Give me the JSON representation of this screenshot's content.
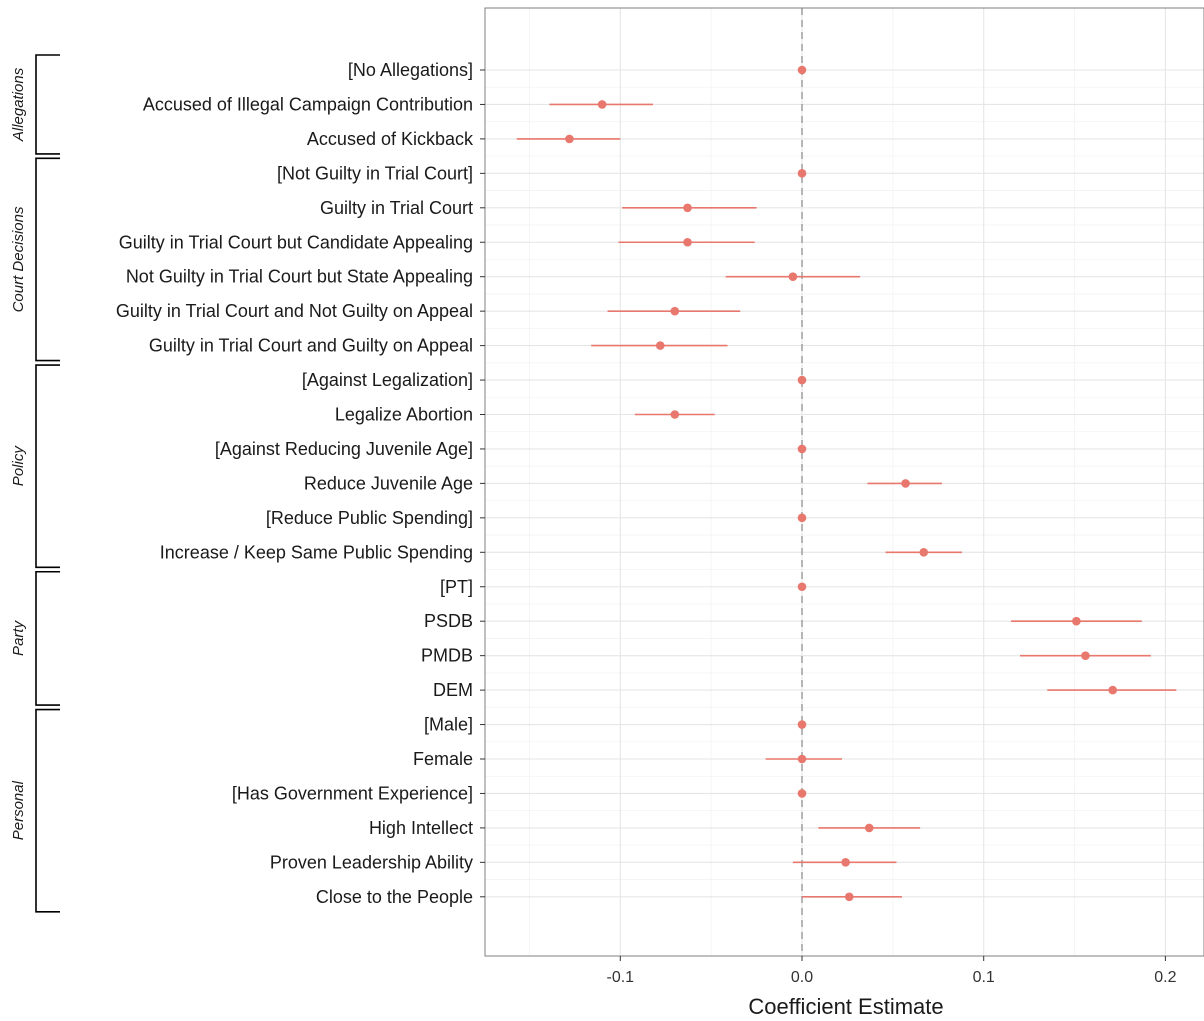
{
  "chart_data": {
    "type": "scatter",
    "subtype": "coefficient-plot",
    "xlabel": "Coefficient Estimate",
    "ylabel": "",
    "xlim": [
      -0.175,
      0.22
    ],
    "xticks": [
      -0.1,
      0.0,
      0.1,
      0.2
    ],
    "xtick_labels": [
      "-0.1",
      "0.0",
      "0.1",
      "0.2"
    ],
    "grid": true,
    "reference_line_x": 0.0,
    "colors": {
      "point": "#e8776d",
      "ci": "#e8776d",
      "grid_major": "#e6e6e6",
      "grid_minor": "#f3f3f3",
      "border": "#7f7f7f",
      "reference": "#888888"
    },
    "groups": [
      {
        "name": "Allegations",
        "items": [
          {
            "label": "[No Allegations]",
            "estimate": 0.0,
            "ci": [
              0.0,
              0.0
            ]
          },
          {
            "label": "Accused of Illegal Campaign Contribution",
            "estimate": -0.11,
            "ci": [
              -0.139,
              -0.082
            ]
          },
          {
            "label": "Accused of Kickback",
            "estimate": -0.128,
            "ci": [
              -0.157,
              -0.1
            ]
          }
        ]
      },
      {
        "name": "Court Decisions",
        "items": [
          {
            "label": "[Not Guilty in Trial Court]",
            "estimate": 0.0,
            "ci": [
              0.0,
              0.0
            ]
          },
          {
            "label": "Guilty in Trial Court",
            "estimate": -0.063,
            "ci": [
              -0.099,
              -0.025
            ]
          },
          {
            "label": "Guilty in Trial Court but Candidate Appealing",
            "estimate": -0.063,
            "ci": [
              -0.101,
              -0.026
            ]
          },
          {
            "label": "Not Guilty in Trial Court but State Appealing",
            "estimate": -0.005,
            "ci": [
              -0.042,
              0.032
            ]
          },
          {
            "label": "Guilty in Trial Court and Not Guilty on Appeal",
            "estimate": -0.07,
            "ci": [
              -0.107,
              -0.034
            ]
          },
          {
            "label": "Guilty in Trial Court and Guilty on Appeal",
            "estimate": -0.078,
            "ci": [
              -0.116,
              -0.041
            ]
          }
        ]
      },
      {
        "name": "Policy",
        "items": [
          {
            "label": "[Against Legalization]",
            "estimate": 0.0,
            "ci": [
              0.0,
              0.0
            ]
          },
          {
            "label": "Legalize Abortion",
            "estimate": -0.07,
            "ci": [
              -0.092,
              -0.048
            ]
          },
          {
            "label": "[Against Reducing Juvenile Age]",
            "estimate": 0.0,
            "ci": [
              0.0,
              0.0
            ]
          },
          {
            "label": "Reduce Juvenile Age",
            "estimate": 0.057,
            "ci": [
              0.036,
              0.077
            ]
          },
          {
            "label": "[Reduce Public Spending]",
            "estimate": 0.0,
            "ci": [
              0.0,
              0.0
            ]
          },
          {
            "label": "Increase / Keep Same Public Spending",
            "estimate": 0.067,
            "ci": [
              0.046,
              0.088
            ]
          }
        ]
      },
      {
        "name": "Party",
        "items": [
          {
            "label": "[PT]",
            "estimate": 0.0,
            "ci": [
              0.0,
              0.0
            ]
          },
          {
            "label": "PSDB",
            "estimate": 0.151,
            "ci": [
              0.115,
              0.187
            ]
          },
          {
            "label": "PMDB",
            "estimate": 0.156,
            "ci": [
              0.12,
              0.192
            ]
          },
          {
            "label": "DEM",
            "estimate": 0.171,
            "ci": [
              0.135,
              0.206
            ]
          }
        ]
      },
      {
        "name": "Personal",
        "items": [
          {
            "label": "[Male]",
            "estimate": 0.0,
            "ci": [
              0.0,
              0.0
            ]
          },
          {
            "label": "Female",
            "estimate": 0.0,
            "ci": [
              -0.02,
              0.022
            ]
          },
          {
            "label": "[Has Government Experience]",
            "estimate": 0.0,
            "ci": [
              0.0,
              0.0
            ]
          },
          {
            "label": "High Intellect",
            "estimate": 0.037,
            "ci": [
              0.009,
              0.065
            ]
          },
          {
            "label": "Proven Leadership Ability",
            "estimate": 0.024,
            "ci": [
              -0.005,
              0.052
            ]
          },
          {
            "label": "Close to the People",
            "estimate": 0.026,
            "ci": [
              0.0,
              0.055
            ]
          }
        ]
      }
    ]
  }
}
